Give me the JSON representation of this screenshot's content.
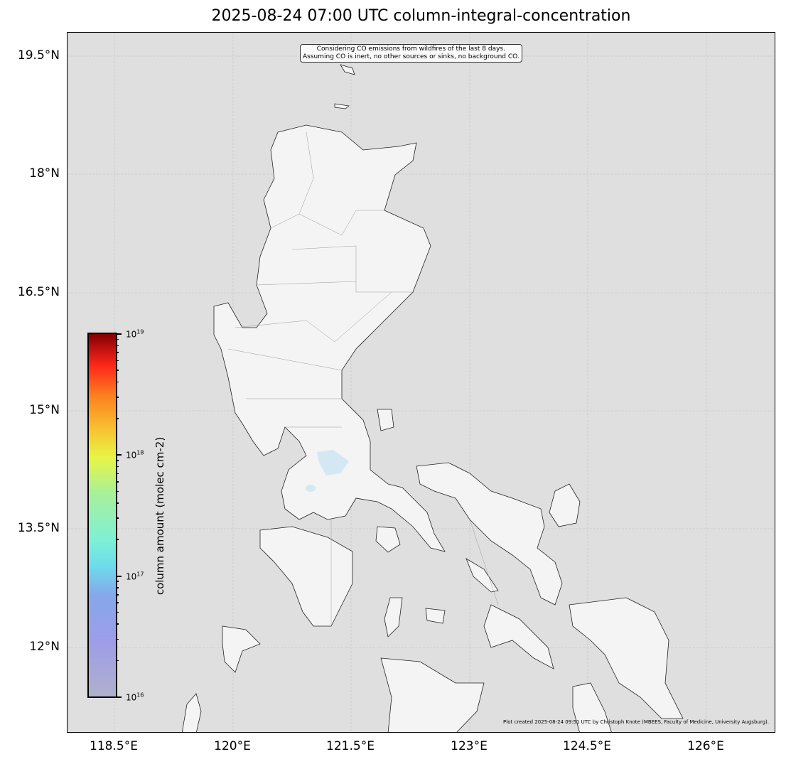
{
  "title": "2025-08-24 07:00 UTC column-integral-concentration",
  "y_ticks": [
    "19.5°N",
    "18°N",
    "16.5°N",
    "15°N",
    "13.5°N",
    "12°N"
  ],
  "x_ticks": [
    "118.5°E",
    "120°E",
    "121.5°E",
    "123°E",
    "124.5°E",
    "126°E"
  ],
  "extent": {
    "lon": [
      117.9,
      126.9
    ],
    "lat": [
      10.9,
      19.8
    ]
  },
  "note_lines": [
    "Considering CO emissions from wildfires of the last 8 days.",
    "Assuming CO is inert, no other sources or sinks, no background CO."
  ],
  "credit": "Plot created 2025-08-24 09:51 UTC by Christoph Knote (MBEES, Faculty of Medicine, University Augsburg).",
  "colorbar": {
    "label": "column amount (molec cm-2)",
    "scale": "log",
    "range": [
      1e+16,
      1e+19
    ],
    "ticks": [
      {
        "base": "10",
        "exp": "19"
      },
      {
        "base": "10",
        "exp": "18"
      },
      {
        "base": "10",
        "exp": "17"
      },
      {
        "base": "10",
        "exp": "16"
      }
    ],
    "colormap": "jet-like (grey-blue to dark red)"
  },
  "colors": {
    "ocean": "#dfdfdf",
    "land": "#f4f4f4",
    "lake": "#d4e8f4",
    "coast": "#222222"
  },
  "grid": true
}
